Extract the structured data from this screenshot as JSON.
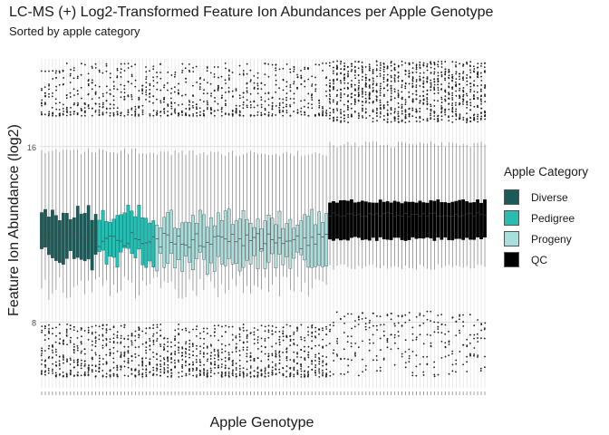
{
  "chart_data": {
    "type": "boxplot",
    "title": "LC-MS (+) Log2-Transformed Feature Ion Abundances per Apple Genotype",
    "subtitle": "Sorted by apple category",
    "xlabel": "Apple Genotype",
    "ylabel": "Feature Ion Abundance (log2)",
    "y_ticks": [
      8,
      16
    ],
    "ylim": [
      5.0,
      20.0
    ],
    "grid": "major vertical lines per genotype, horizontal at y ticks",
    "x_tick_labels_legible": false,
    "legend": {
      "title": "Apple Category",
      "placement": "right",
      "items": [
        {
          "label": "Diverse",
          "color": "#1a5a58"
        },
        {
          "label": "Pedigree",
          "color": "#27bdb3"
        },
        {
          "label": "Progeny",
          "color": "#a6dfdc"
        },
        {
          "label": "QC",
          "color": "#000000"
        }
      ]
    },
    "groups": [
      {
        "category": "Diverse",
        "count": 16,
        "median": 11.9,
        "q1": 10.9,
        "q3": 12.9,
        "whisker_low": 9.5,
        "whisker_high": 15.8
      },
      {
        "category": "Pedigree",
        "count": 16,
        "median": 11.8,
        "q1": 10.9,
        "q3": 12.9,
        "whisker_low": 9.6,
        "whisker_high": 15.8
      },
      {
        "category": "Progeny",
        "count": 48,
        "median": 11.7,
        "q1": 10.7,
        "q3": 12.7,
        "whisker_low": 9.6,
        "whisker_high": 15.7
      },
      {
        "category": "QC",
        "count": 44,
        "median": 12.9,
        "q1": 11.8,
        "q3": 13.5,
        "whisker_low": 10.5,
        "whisker_high": 16.1
      }
    ]
  }
}
